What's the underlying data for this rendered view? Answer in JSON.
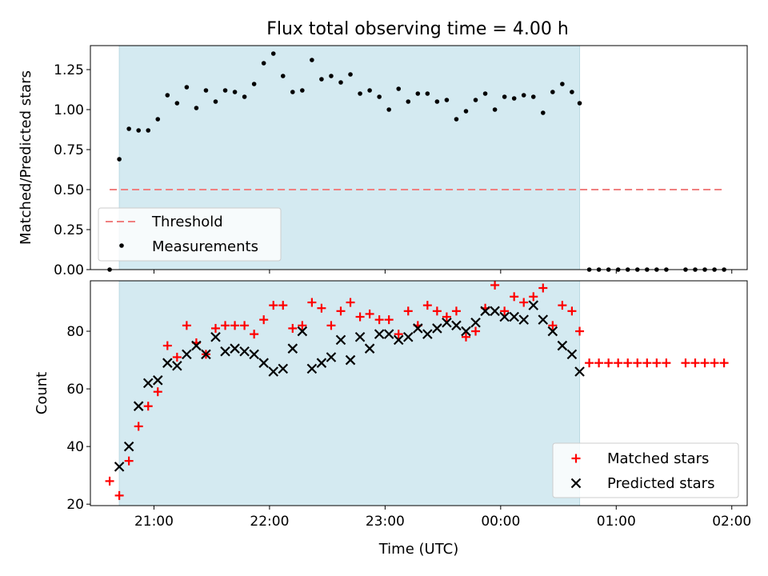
{
  "title": "Flux total observing time = 4.00 h",
  "colors": {
    "shade": "#d4eaf1",
    "threshold": "#f08080",
    "measurement": "#000000",
    "matched": "#ff0000",
    "predicted": "#000000"
  },
  "chart_data": [
    {
      "type": "scatter",
      "ylabel": "Matched/Predicted stars",
      "ylim": [
        0,
        1.4
      ],
      "yticks": [
        0.0,
        0.25,
        0.5,
        0.75,
        1.0,
        1.25
      ],
      "ytick_labels": [
        "0.00",
        "0.25",
        "0.50",
        "0.75",
        "1.00",
        "1.25"
      ],
      "xlim": [
        "20:27",
        "02:08"
      ],
      "shaded_interval": [
        "20:42",
        "00:41"
      ],
      "legend_position": "lower-left",
      "threshold": {
        "name": "Threshold",
        "y": 0.5,
        "x": [
          "20:37",
          "01:56"
        ],
        "style": "dashed"
      },
      "series": [
        {
          "name": "Measurements",
          "x": [
            "20:37",
            "20:42",
            "20:47",
            "20:52",
            "20:57",
            "21:02",
            "21:07",
            "21:12",
            "21:17",
            "21:22",
            "21:27",
            "21:32",
            "21:37",
            "21:42",
            "21:47",
            "21:52",
            "21:57",
            "22:02",
            "22:07",
            "22:12",
            "22:17",
            "22:22",
            "22:27",
            "22:32",
            "22:37",
            "22:42",
            "22:47",
            "22:52",
            "22:57",
            "23:02",
            "23:07",
            "23:12",
            "23:17",
            "23:22",
            "23:27",
            "23:32",
            "23:37",
            "23:42",
            "23:47",
            "23:52",
            "23:57",
            "00:02",
            "00:07",
            "00:12",
            "00:17",
            "00:22",
            "00:27",
            "00:32",
            "00:37",
            "00:41",
            "00:46",
            "00:51",
            "00:56",
            "01:01",
            "01:06",
            "01:11",
            "01:16",
            "01:21",
            "01:26",
            "01:31",
            "01:36",
            "01:41",
            "01:46",
            "01:51",
            "01:56"
          ],
          "y": [
            0.0,
            0.69,
            0.88,
            0.87,
            0.87,
            0.94,
            1.09,
            1.04,
            1.14,
            1.01,
            1.12,
            1.05,
            1.12,
            1.11,
            1.08,
            1.16,
            1.29,
            1.35,
            1.21,
            1.11,
            1.12,
            1.31,
            1.19,
            1.21,
            1.17,
            1.22,
            1.1,
            1.12,
            1.08,
            1.0,
            1.13,
            1.05,
            1.1,
            1.1,
            1.05,
            1.06,
            0.94,
            0.99,
            1.06,
            1.1,
            1.0,
            1.08,
            1.07,
            1.09,
            1.08,
            0.98,
            1.11,
            1.16,
            1.11,
            1.04,
            0.0,
            0.0,
            0.0,
            0.0,
            0.0,
            0.0,
            0.0,
            0.0,
            0.0,
            null,
            0.0,
            0.0,
            0.0,
            0.0,
            0.0
          ]
        }
      ]
    },
    {
      "type": "scatter",
      "xlabel": "Time (UTC)",
      "ylabel": "Count",
      "ylim": [
        19.5,
        97.5
      ],
      "yticks": [
        20,
        40,
        60,
        80
      ],
      "ytick_labels": [
        "20",
        "40",
        "60",
        "80"
      ],
      "xlim": [
        "20:27",
        "02:08"
      ],
      "xticks": [
        "21:00",
        "22:00",
        "23:00",
        "00:00",
        "01:00",
        "02:00"
      ],
      "shaded_interval": [
        "20:42",
        "00:41"
      ],
      "legend_position": "lower-right",
      "series": [
        {
          "name": "Matched stars",
          "marker": "plus",
          "x": [
            "20:37",
            "20:42",
            "20:47",
            "20:52",
            "20:57",
            "21:02",
            "21:07",
            "21:12",
            "21:17",
            "21:22",
            "21:27",
            "21:32",
            "21:37",
            "21:42",
            "21:47",
            "21:52",
            "21:57",
            "22:02",
            "22:07",
            "22:12",
            "22:17",
            "22:22",
            "22:27",
            "22:32",
            "22:37",
            "22:42",
            "22:47",
            "22:52",
            "22:57",
            "23:02",
            "23:07",
            "23:12",
            "23:17",
            "23:22",
            "23:27",
            "23:32",
            "23:37",
            "23:42",
            "23:47",
            "23:52",
            "23:57",
            "00:02",
            "00:07",
            "00:12",
            "00:17",
            "00:22",
            "00:27",
            "00:32",
            "00:37",
            "00:41",
            "00:46",
            "00:51",
            "00:56",
            "01:01",
            "01:06",
            "01:11",
            "01:16",
            "01:21",
            "01:26",
            "01:36",
            "01:41",
            "01:46",
            "01:51",
            "01:56"
          ],
          "y": [
            28,
            23,
            35,
            47,
            54,
            59,
            75,
            71,
            82,
            76,
            72,
            81,
            82,
            82,
            82,
            79,
            84,
            89,
            89,
            81,
            82,
            90,
            88,
            82,
            87,
            90,
            85,
            86,
            84,
            84,
            79,
            87,
            82,
            89,
            87,
            85,
            87,
            78,
            80,
            88,
            96,
            87,
            92,
            90,
            92,
            95,
            82,
            89,
            87,
            80,
            69,
            69,
            69,
            69,
            69,
            69,
            69,
            69,
            69,
            69,
            69,
            69,
            69,
            69
          ]
        },
        {
          "name": "Predicted stars",
          "marker": "x",
          "x": [
            "20:42",
            "20:47",
            "20:52",
            "20:57",
            "21:02",
            "21:07",
            "21:12",
            "21:17",
            "21:22",
            "21:27",
            "21:32",
            "21:37",
            "21:42",
            "21:47",
            "21:52",
            "21:57",
            "22:02",
            "22:07",
            "22:12",
            "22:17",
            "22:22",
            "22:27",
            "22:32",
            "22:37",
            "22:42",
            "22:47",
            "22:52",
            "22:57",
            "23:02",
            "23:07",
            "23:12",
            "23:17",
            "23:22",
            "23:27",
            "23:32",
            "23:37",
            "23:42",
            "23:47",
            "23:52",
            "23:57",
            "00:02",
            "00:07",
            "00:12",
            "00:17",
            "00:22",
            "00:27",
            "00:32",
            "00:37",
            "00:41"
          ],
          "y": [
            33,
            40,
            54,
            62,
            63,
            69,
            68,
            72,
            75,
            72,
            78,
            73,
            74,
            73,
            72,
            69,
            66,
            67,
            74,
            80,
            67,
            69,
            71,
            77,
            70,
            78,
            74,
            79,
            79,
            77,
            78,
            81,
            79,
            81,
            83,
            82,
            80,
            83,
            87,
            87,
            85,
            85,
            84,
            89,
            84,
            80,
            75,
            72,
            66
          ]
        }
      ]
    }
  ]
}
